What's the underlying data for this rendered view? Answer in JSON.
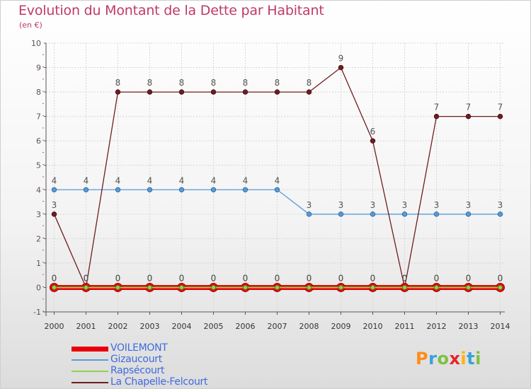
{
  "title": "Evolution du Montant de la Dette par Habitant",
  "subtitle": "(en €)",
  "logo": {
    "text": "Proxiti",
    "colors": [
      "#ff8c1a",
      "#3aa0d8",
      "#7cc242",
      "#e8232a",
      "#ffb400",
      "#3aa0d8",
      "#7cc242"
    ]
  },
  "chart_data": {
    "type": "line",
    "title": "Evolution du Montant de la Dette par Habitant",
    "ylabel": "(en €)",
    "xlabel": "",
    "x": [
      "2000",
      "2001",
      "2002",
      "2003",
      "2004",
      "2005",
      "2006",
      "2007",
      "2008",
      "2009",
      "2010",
      "2011",
      "2012",
      "2013",
      "2014"
    ],
    "ylim": [
      -1,
      10
    ],
    "yticks": [
      "-1",
      "0",
      "1",
      "2",
      "3",
      "4",
      "5",
      "6",
      "7",
      "8",
      "9",
      "10"
    ],
    "series": [
      {
        "name": "VOILEMONT",
        "color": "#e8000b",
        "values": [
          0,
          0,
          0,
          0,
          0,
          0,
          0,
          0,
          0,
          0,
          0,
          0,
          0,
          0,
          0
        ]
      },
      {
        "name": "Gizaucourt",
        "color": "#5b9bd5",
        "values": [
          4,
          4,
          4,
          4,
          4,
          4,
          4,
          4,
          3,
          3,
          3,
          3,
          3,
          3,
          3
        ]
      },
      {
        "name": "Rapsécourt",
        "color": "#92d050",
        "values": [
          0,
          0,
          0,
          0,
          0,
          0,
          0,
          0,
          0,
          0,
          0,
          0,
          0,
          0,
          0
        ]
      },
      {
        "name": "La Chapelle-Felcourt",
        "color": "#6e1e22",
        "values": [
          3,
          0,
          8,
          8,
          8,
          8,
          8,
          8,
          8,
          9,
          6,
          0,
          7,
          7,
          7
        ]
      }
    ]
  },
  "legend": [
    {
      "name": "VOILEMONT",
      "color": "#e8000b",
      "text_color": "#3f6ae0"
    },
    {
      "name": "Gizaucourt",
      "color": "#5b9bd5",
      "text_color": "#3f6ae0"
    },
    {
      "name": "Rapsécourt",
      "color": "#92d050",
      "text_color": "#3f6ae0"
    },
    {
      "name": "La Chapelle-Felcourt",
      "color": "#6e1e22",
      "text_color": "#3f6ae0"
    }
  ]
}
